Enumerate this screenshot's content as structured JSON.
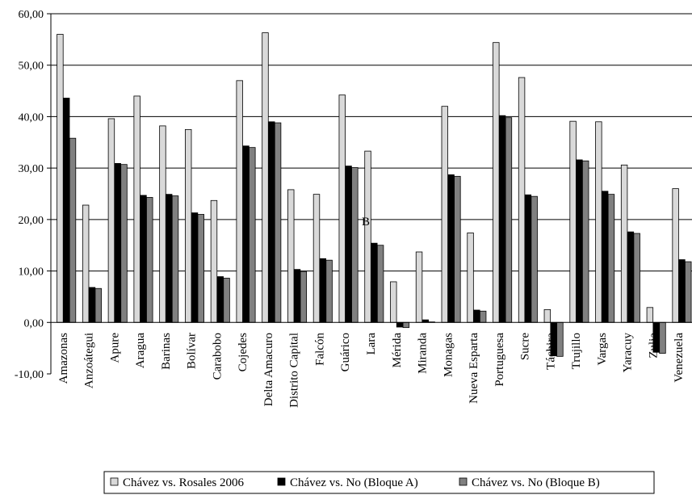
{
  "chart_data": {
    "type": "bar",
    "title": "",
    "xlabel": "",
    "ylabel": "",
    "ylim": [
      -10,
      60
    ],
    "yticks": [
      "-10,00",
      "0,00",
      "10,00",
      "20,00",
      "30,00",
      "40,00",
      "50,00",
      "60,00"
    ],
    "ytick_values": [
      -10,
      0,
      10,
      20,
      30,
      40,
      50,
      60
    ],
    "grid": "horizontal",
    "legend_position": "bottom",
    "annotation": "B",
    "categories": [
      "Amazonas",
      "Anzoátegui",
      "Apure",
      "Aragua",
      "Barinas",
      "Bolívar",
      "Carabobo",
      "Cojedes",
      "Delta Amacuro",
      "Distrito Capital",
      "Falcón",
      "Guárico",
      "Lara",
      "Mérida",
      "Miranda",
      "Monagas",
      "Nueva Esparta",
      "Portuguesa",
      "Sucre",
      "Táchira",
      "Trujillo",
      "Vargas",
      "Yaracuy",
      "Zulia",
      "Venezuela"
    ],
    "series": [
      {
        "name": "Chávez vs. Rosales 2006",
        "color": "#d9d9d9",
        "values": [
          56.0,
          22.8,
          39.6,
          44.0,
          38.2,
          37.5,
          23.7,
          47.0,
          56.3,
          25.8,
          24.9,
          44.2,
          33.3,
          7.9,
          13.7,
          42.0,
          17.4,
          54.4,
          47.6,
          2.5,
          39.1,
          39.0,
          30.6,
          2.9,
          26.0
        ]
      },
      {
        "name": "Chávez vs. No (Bloque A)",
        "color": "#000000",
        "values": [
          43.6,
          6.8,
          30.9,
          24.7,
          24.9,
          21.3,
          8.9,
          34.3,
          39.0,
          10.3,
          12.4,
          30.4,
          15.4,
          -0.9,
          0.5,
          28.7,
          2.4,
          40.2,
          24.8,
          -6.5,
          31.6,
          25.5,
          17.6,
          -5.8,
          12.2
        ]
      },
      {
        "name": "Chávez vs. No (Bloque B)",
        "color": "#808080",
        "values": [
          35.8,
          6.6,
          30.7,
          24.3,
          24.6,
          21.0,
          8.6,
          34.0,
          38.8,
          9.9,
          12.1,
          30.1,
          15.0,
          -1.0,
          0.1,
          28.4,
          2.2,
          39.8,
          24.5,
          -6.6,
          31.4,
          24.9,
          17.3,
          -6.0,
          11.8
        ]
      }
    ]
  }
}
